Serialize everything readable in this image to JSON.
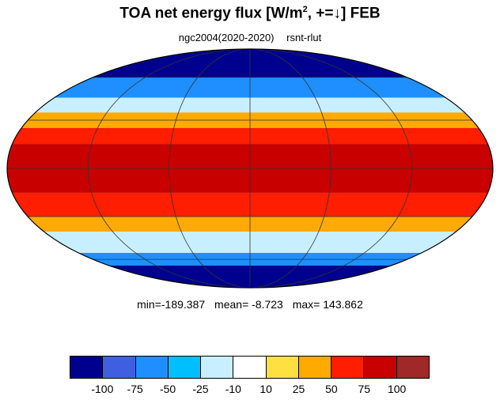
{
  "title_main": "TOA net energy flux  [W/m",
  "title_sup": "2",
  "title_tail": ", +=↓] FEB",
  "subtitle": {
    "run": "ngc2004(2020-2020)",
    "variable": "rsnt-rlut"
  },
  "stats": {
    "min": "min=-189.387",
    "mean": "mean=  -8.723",
    "max": "max= 143.862"
  },
  "map": {
    "projection": "mollweide",
    "bands": [
      {
        "lat": [
          60,
          90
        ],
        "value": -110
      },
      {
        "lat": [
          45,
          60
        ],
        "value": -60
      },
      {
        "lat": [
          35,
          45
        ],
        "value": -15
      },
      {
        "lat": [
          25,
          35
        ],
        "value": 25
      },
      {
        "lat": [
          15,
          25
        ],
        "value": 60
      },
      {
        "lat": [
          -15,
          15
        ],
        "value": 90
      },
      {
        "lat": [
          -30,
          -15
        ],
        "value": 60
      },
      {
        "lat": [
          -40,
          -30
        ],
        "value": 25
      },
      {
        "lat": [
          -55,
          -40
        ],
        "value": -20
      },
      {
        "lat": [
          -65,
          -55
        ],
        "value": -60
      },
      {
        "lat": [
          -90,
          -65
        ],
        "value": -110
      }
    ]
  },
  "colorbar": {
    "colors": [
      "#00008f",
      "#3f5fe0",
      "#1f8fff",
      "#00bfff",
      "#c8efff",
      "#ffffff",
      "#ffe040",
      "#ffaa00",
      "#ff1e00",
      "#c80000",
      "#a02828"
    ],
    "labels": [
      "-100",
      "-75",
      "-50",
      "-25",
      "-10",
      "10",
      "25",
      "50",
      "75",
      "100"
    ]
  }
}
